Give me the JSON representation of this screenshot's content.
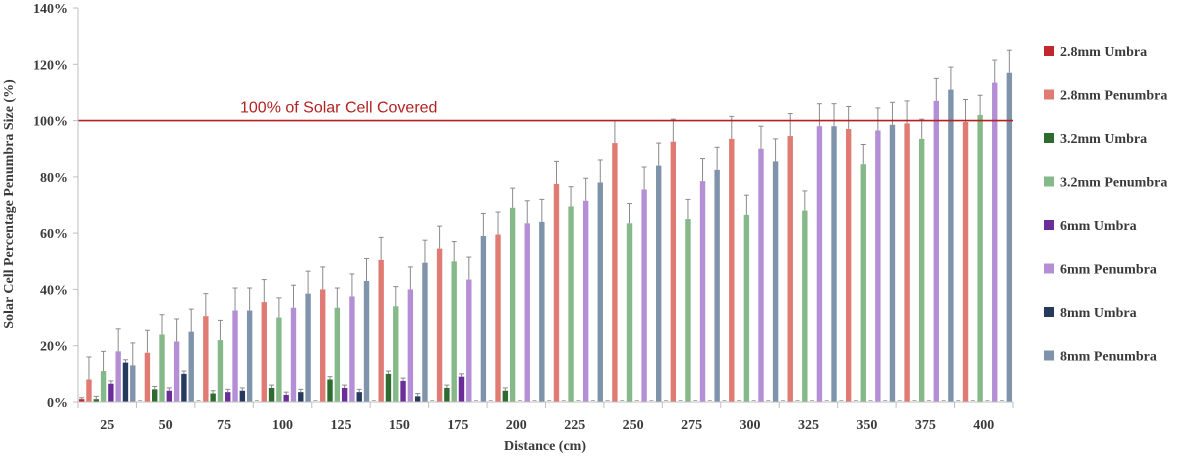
{
  "chart_data": {
    "type": "bar",
    "title": "",
    "xlabel": "Distance (cm)",
    "ylabel": "Solar Cell Percentage Penumbra Size (%)",
    "ylim": [
      0,
      140
    ],
    "yticks": [
      "0%",
      "20%",
      "40%",
      "60%",
      "80%",
      "100%",
      "120%",
      "140%"
    ],
    "categories": [
      "25",
      "50",
      "75",
      "100",
      "125",
      "150",
      "175",
      "200",
      "225",
      "250",
      "275",
      "300",
      "325",
      "350",
      "375",
      "400"
    ],
    "grid": false,
    "legend_position": "right",
    "reference_line": {
      "value": 100,
      "label": "100% of Solar Cell Covered",
      "color": "#b22222"
    },
    "series": [
      {
        "name": "2.8mm Umbra",
        "color": "#c0282d",
        "values": [
          1,
          0,
          0,
          0,
          0,
          0,
          0,
          0,
          0,
          0,
          0,
          0,
          0,
          0,
          0,
          0
        ],
        "errors": [
          0.5,
          0,
          0,
          0,
          0,
          0,
          0,
          0,
          0,
          0,
          0,
          0,
          0,
          0,
          0,
          0
        ]
      },
      {
        "name": "2.8mm Penumbra",
        "color": "#e07b74",
        "values": [
          8,
          17.5,
          30.5,
          35.5,
          40,
          50.5,
          54.5,
          59.5,
          77.5,
          92,
          92.5,
          93.5,
          94.5,
          97,
          99,
          99.5
        ],
        "errors": [
          8,
          8,
          8,
          8,
          8,
          8,
          8,
          8,
          8,
          8,
          8,
          8,
          8,
          8,
          8,
          8
        ]
      },
      {
        "name": "3.2mm Umbra",
        "color": "#2e6b30",
        "values": [
          1,
          4.5,
          3,
          5,
          8,
          10,
          5,
          4,
          0,
          0,
          0,
          0,
          0,
          0,
          0,
          0
        ],
        "errors": [
          1,
          1,
          1,
          1,
          1,
          1,
          1,
          1,
          0,
          0,
          0,
          0,
          0,
          0,
          0,
          0
        ]
      },
      {
        "name": "3.2mm Penumbra",
        "color": "#86b98a",
        "values": [
          11,
          24,
          22,
          30,
          33.5,
          34,
          50,
          69,
          69.5,
          63.5,
          65,
          66.5,
          68,
          84.5,
          93.5,
          102
        ],
        "errors": [
          7,
          7,
          7,
          7,
          7,
          7,
          7,
          7,
          7,
          7,
          7,
          7,
          7,
          7,
          7,
          7
        ]
      },
      {
        "name": "6mm Umbra",
        "color": "#6a2d9a",
        "values": [
          6.5,
          4,
          3.5,
          2.5,
          5,
          7.5,
          9,
          0,
          0,
          0,
          0,
          0,
          0,
          0,
          0,
          0
        ],
        "errors": [
          1,
          1,
          1,
          1,
          1,
          1,
          1,
          0,
          0,
          0,
          0,
          0,
          0,
          0,
          0,
          0
        ]
      },
      {
        "name": "6mm Penumbra",
        "color": "#b48fd6",
        "values": [
          18,
          21.5,
          32.5,
          33.5,
          37.5,
          40,
          43.5,
          63.5,
          71.5,
          75.5,
          78.5,
          90,
          98,
          96.5,
          107,
          113.5
        ],
        "errors": [
          8,
          8,
          8,
          8,
          8,
          8,
          8,
          8,
          8,
          8,
          8,
          8,
          8,
          8,
          8,
          8
        ]
      },
      {
        "name": "8mm Umbra",
        "color": "#253a5c",
        "values": [
          14,
          10,
          4,
          3.5,
          3.5,
          2,
          0,
          0,
          0,
          0,
          0,
          0,
          0,
          0,
          0,
          0
        ],
        "errors": [
          1,
          1,
          1,
          1,
          1,
          1,
          0,
          0,
          0,
          0,
          0,
          0,
          0,
          0,
          0,
          0
        ]
      },
      {
        "name": "8mm Penumbra",
        "color": "#7f93aa",
        "values": [
          13,
          25,
          32.5,
          38.5,
          43,
          49.5,
          59,
          64,
          78,
          84,
          82.5,
          85.5,
          98,
          98.5,
          111,
          117
        ],
        "errors": [
          8,
          8,
          8,
          8,
          8,
          8,
          8,
          8,
          8,
          8,
          8,
          8,
          8,
          8,
          8,
          8
        ]
      }
    ]
  }
}
